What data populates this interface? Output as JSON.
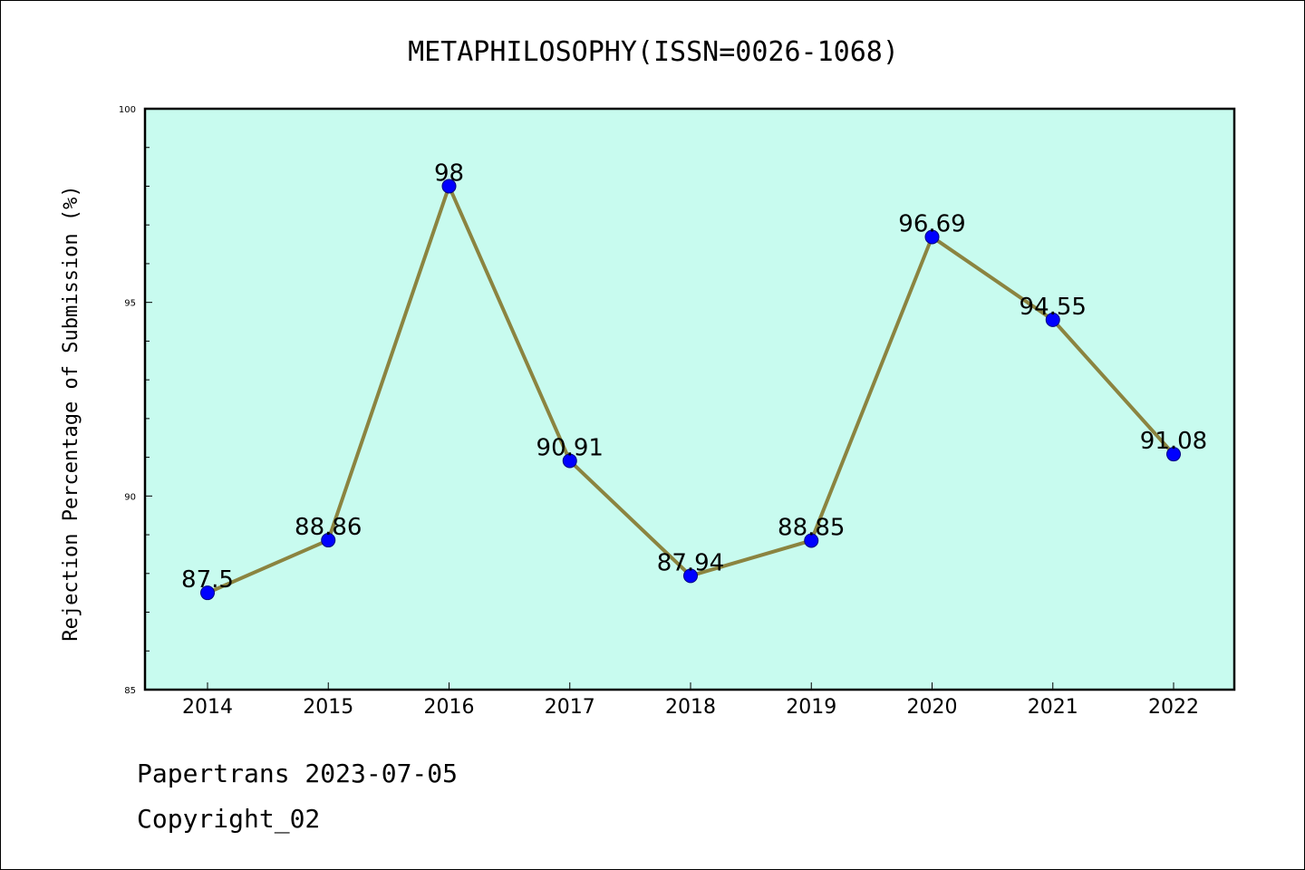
{
  "chart_data": {
    "type": "line",
    "title": "METAPHILOSOPHY(ISSN=0026-1068)",
    "ylabel": "Rejection Percentage of Submission (%)",
    "xlabel": "",
    "categories": [
      "2014",
      "2015",
      "2016",
      "2017",
      "2018",
      "2019",
      "2020",
      "2021",
      "2022"
    ],
    "series": [
      {
        "values": [
          87.5,
          88.86,
          98,
          90.91,
          87.94,
          88.85,
          96.69,
          94.55,
          91.08
        ],
        "labels": [
          "87.5",
          "88.86",
          "98",
          "90.91",
          "87.94",
          "88.85",
          "96.69",
          "94.55",
          "91.08"
        ]
      }
    ],
    "ylim": [
      85,
      100
    ],
    "yticks": [
      "85",
      "90",
      "95",
      "100"
    ],
    "grid": false,
    "colors": {
      "plot_background": "#c8fbef",
      "line": "#8b8440",
      "marker": "#0000ff",
      "marker_edge": "#000080"
    }
  },
  "footer": {
    "line1": "Papertrans 2023-07-05",
    "line2": "Copyright_02"
  }
}
